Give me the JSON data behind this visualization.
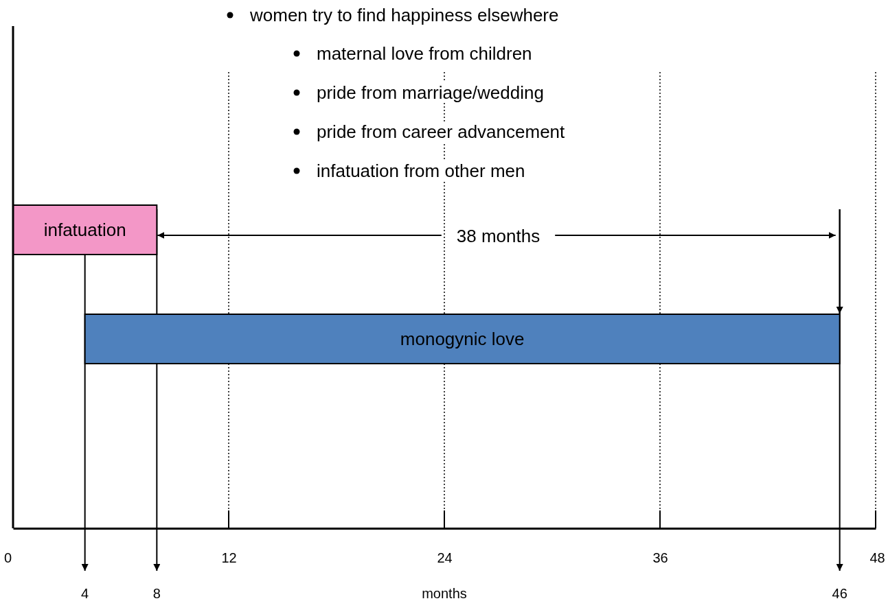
{
  "chart_data": {
    "type": "bar",
    "orientation": "horizontal",
    "categories": [
      "infatuation",
      "monogynic love"
    ],
    "base": [
      0,
      4
    ],
    "values": [
      8,
      42
    ],
    "colors": [
      "#f397c7",
      "#4f81bd"
    ],
    "xlim": [
      0,
      48
    ],
    "xticks": [
      0,
      12,
      24,
      36,
      48
    ],
    "xlabel": "months",
    "grid": "x",
    "line_style": "dotted",
    "ref_lines": [
      {
        "axis": "x",
        "value": 4,
        "label": "4"
      },
      {
        "axis": "x",
        "value": 8,
        "label": "8"
      },
      {
        "axis": "x",
        "value": 46,
        "label": "46"
      }
    ],
    "annotations": [
      "women try to find happiness elsewhere",
      "maternal love from children",
      "pride from marriage/wedding",
      "pride from career advancement",
      "infatuation from other men",
      "38 months"
    ]
  }
}
